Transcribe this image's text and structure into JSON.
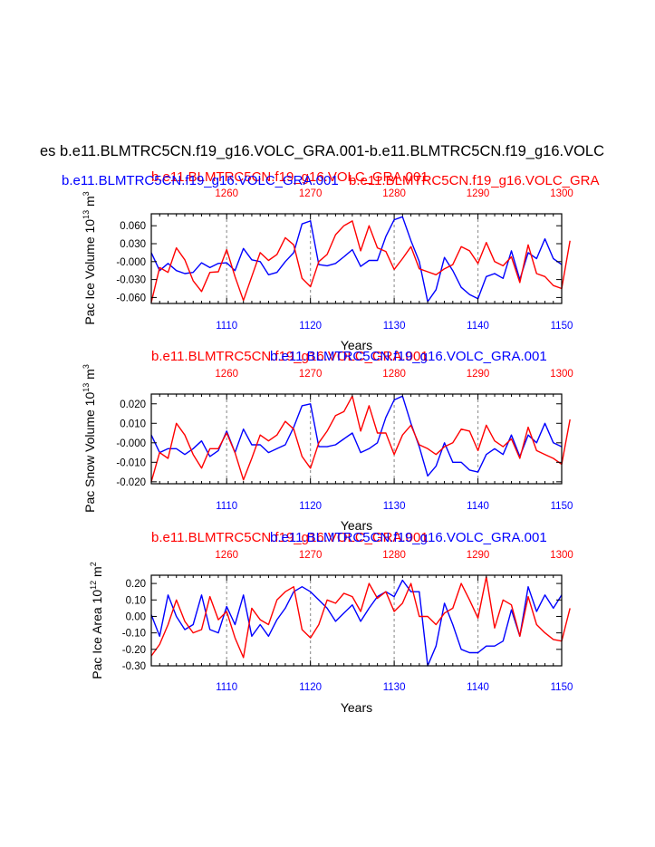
{
  "page_title": "es b.e11.BLMTRC5CN.f19_g16.VOLC_GRA.001-b.e11.BLMTRC5CN.f19_g16.VOLC",
  "colors": {
    "blue": "#0000ff",
    "red": "#ff0000",
    "grid": "#999999",
    "axis": "#000000"
  },
  "chart_data": [
    {
      "type": "line",
      "ylabel": "Pac Ice Volume 10",
      "ylabel_exp": "13",
      "ylabel_unit": " m",
      "ylabel_unit_exp": "3",
      "xlabel": "Years",
      "title_red": "b.e11.BLMTRC5CN.f19_g16.VOLC_GRA.001",
      "title_blue": "b.e11.BLMTRC5CN.f19_g16.VOLC_GRA.001",
      "title_red_ghost": "b.e11.BLMTRC5CN.f19_g16.VOLC_GRA",
      "ylim": [
        -0.07,
        0.08
      ],
      "yticks": [
        -0.06,
        -0.03,
        0.0,
        0.03,
        0.06
      ],
      "ytick_labels": [
        "-0.060",
        "-0.030",
        "-0.000",
        "0.030",
        "0.060"
      ],
      "xlim_bottom": [
        1101,
        1150
      ],
      "xticks_bottom": [
        1110,
        1120,
        1130,
        1140,
        1150
      ],
      "xlim_top": [
        1251,
        1300
      ],
      "xticks_top": [
        1260,
        1270,
        1280,
        1290,
        1300
      ],
      "series": [
        {
          "name": "blue",
          "x_axis": "bottom",
          "x_start": 1101,
          "values": [
            0.015,
            -0.015,
            -0.003,
            -0.015,
            -0.02,
            -0.018,
            -0.002,
            -0.01,
            -0.003,
            -0.002,
            -0.015,
            0.022,
            0.003,
            0.0,
            -0.022,
            -0.018,
            0.0,
            0.015,
            0.063,
            0.068,
            -0.005,
            -0.007,
            -0.003,
            0.008,
            0.02,
            -0.008,
            0.002,
            0.002,
            0.042,
            0.07,
            0.075,
            0.035,
            0.0,
            -0.067,
            -0.047,
            0.007,
            -0.015,
            -0.043,
            -0.055,
            -0.062,
            -0.025,
            -0.02,
            -0.028,
            0.018,
            -0.03,
            0.015,
            0.005,
            0.038,
            0.005,
            -0.005
          ]
        },
        {
          "name": "red",
          "x_axis": "top",
          "x_start": 1251,
          "values": [
            -0.068,
            -0.01,
            -0.018,
            0.023,
            0.003,
            -0.032,
            -0.05,
            -0.018,
            -0.017,
            0.02,
            -0.025,
            -0.065,
            -0.025,
            0.015,
            0.002,
            0.012,
            0.04,
            0.028,
            -0.028,
            -0.042,
            0.0,
            0.012,
            0.045,
            0.06,
            0.068,
            0.018,
            0.06,
            0.023,
            0.017,
            -0.013,
            0.005,
            0.025,
            -0.012,
            -0.017,
            -0.022,
            -0.012,
            -0.005,
            0.025,
            0.018,
            -0.003,
            0.032,
            0.0,
            -0.007,
            0.008,
            -0.035,
            0.028,
            -0.02,
            -0.025,
            -0.04,
            -0.045,
            0.035
          ]
        }
      ]
    },
    {
      "type": "line",
      "ylabel": "Pac Snow Volume 10",
      "ylabel_exp": "13",
      "ylabel_unit": " m",
      "ylabel_unit_exp": "3",
      "xlabel": "Years",
      "title_red": "b.e11.BLMTRC5CN.f19_g16.VOLC_GRA.001",
      "title_blue": "b.e11.BLMTRC5CN.f19_g16.VOLC_GRA.001",
      "ylim": [
        -0.021,
        0.025
      ],
      "yticks": [
        -0.02,
        -0.01,
        0.0,
        0.01,
        0.02
      ],
      "ytick_labels": [
        "-0.020",
        "-0.010",
        "-0.000",
        "0.010",
        "0.020"
      ],
      "xlim_bottom": [
        1101,
        1150
      ],
      "xticks_bottom": [
        1110,
        1120,
        1130,
        1140,
        1150
      ],
      "xlim_top": [
        1251,
        1300
      ],
      "xticks_top": [
        1260,
        1270,
        1280,
        1290,
        1300
      ],
      "series": [
        {
          "name": "blue",
          "x_axis": "bottom",
          "x_start": 1101,
          "values": [
            0.004,
            -0.005,
            -0.003,
            -0.003,
            -0.006,
            -0.003,
            0.001,
            -0.007,
            -0.004,
            0.006,
            -0.005,
            0.007,
            -0.001,
            -0.001,
            -0.005,
            -0.003,
            -0.001,
            0.008,
            0.019,
            0.02,
            -0.002,
            -0.002,
            -0.001,
            0.002,
            0.005,
            -0.005,
            -0.003,
            0.0,
            0.013,
            0.022,
            0.024,
            0.01,
            -0.002,
            -0.017,
            -0.012,
            0.0,
            -0.01,
            -0.01,
            -0.014,
            -0.015,
            -0.006,
            -0.003,
            -0.006,
            0.004,
            -0.007,
            0.004,
            0.0,
            0.01,
            0.0,
            -0.002
          ]
        },
        {
          "name": "red",
          "x_axis": "top",
          "x_start": 1251,
          "values": [
            -0.02,
            -0.005,
            -0.008,
            0.01,
            0.004,
            -0.006,
            -0.013,
            -0.003,
            -0.003,
            0.005,
            -0.005,
            -0.019,
            -0.008,
            0.004,
            0.001,
            0.004,
            0.011,
            0.007,
            -0.007,
            -0.013,
            0.0,
            0.006,
            0.014,
            0.016,
            0.024,
            0.006,
            0.019,
            0.005,
            0.005,
            -0.006,
            0.004,
            0.009,
            -0.001,
            -0.003,
            -0.006,
            -0.002,
            0.0,
            0.007,
            0.006,
            -0.004,
            0.009,
            0.001,
            -0.002,
            0.002,
            -0.008,
            0.008,
            -0.004,
            -0.006,
            -0.008,
            -0.011,
            0.012
          ]
        }
      ]
    },
    {
      "type": "line",
      "ylabel": "Pac Ice Area 10",
      "ylabel_exp": "12",
      "ylabel_unit": " m",
      "ylabel_unit_exp": "2",
      "xlabel": "Years",
      "title_red": "b.e11.BLMTRC5CN.f19_g16.VOLC_GRA.001",
      "title_blue": "b.e11.BLMTRC5CN.f19_g16.VOLC_GRA.001",
      "ylim": [
        -0.3,
        0.25
      ],
      "yticks": [
        -0.3,
        -0.2,
        -0.1,
        0.0,
        0.1,
        0.2
      ],
      "ytick_labels": [
        "-0.30",
        "-0.20",
        "-0.10",
        "0.00",
        "0.10",
        "0.20"
      ],
      "xlim_bottom": [
        1101,
        1150
      ],
      "xticks_bottom": [
        1110,
        1120,
        1130,
        1140,
        1150
      ],
      "xlim_top": [
        1251,
        1300
      ],
      "xticks_top": [
        1260,
        1270,
        1280,
        1290,
        1300
      ],
      "series": [
        {
          "name": "blue",
          "x_axis": "bottom",
          "x_start": 1101,
          "values": [
            0.01,
            -0.12,
            0.13,
            0.0,
            -0.08,
            -0.05,
            0.13,
            -0.08,
            -0.1,
            0.06,
            -0.05,
            0.13,
            -0.12,
            -0.05,
            -0.12,
            -0.02,
            0.05,
            0.15,
            0.18,
            0.15,
            0.1,
            0.05,
            -0.03,
            0.02,
            0.07,
            -0.03,
            0.05,
            0.12,
            0.15,
            0.12,
            0.22,
            0.15,
            0.15,
            -0.3,
            -0.18,
            0.08,
            -0.05,
            -0.2,
            -0.22,
            -0.22,
            -0.18,
            -0.18,
            -0.15,
            0.04,
            -0.12,
            0.18,
            0.03,
            0.13,
            0.05,
            0.13
          ]
        },
        {
          "name": "red",
          "x_axis": "top",
          "x_start": 1251,
          "values": [
            -0.24,
            -0.17,
            -0.05,
            0.1,
            -0.03,
            -0.1,
            -0.08,
            0.12,
            -0.02,
            0.03,
            -0.13,
            -0.25,
            0.05,
            -0.02,
            -0.05,
            0.1,
            0.15,
            0.18,
            -0.08,
            -0.13,
            -0.05,
            0.1,
            0.08,
            0.14,
            0.12,
            0.03,
            0.2,
            0.11,
            0.15,
            0.03,
            0.08,
            0.2,
            0.0,
            0.0,
            -0.05,
            0.02,
            0.05,
            0.2,
            0.1,
            -0.01,
            0.24,
            -0.07,
            0.1,
            0.07,
            -0.12,
            0.12,
            -0.05,
            -0.1,
            -0.14,
            -0.15,
            0.05
          ]
        }
      ]
    }
  ]
}
